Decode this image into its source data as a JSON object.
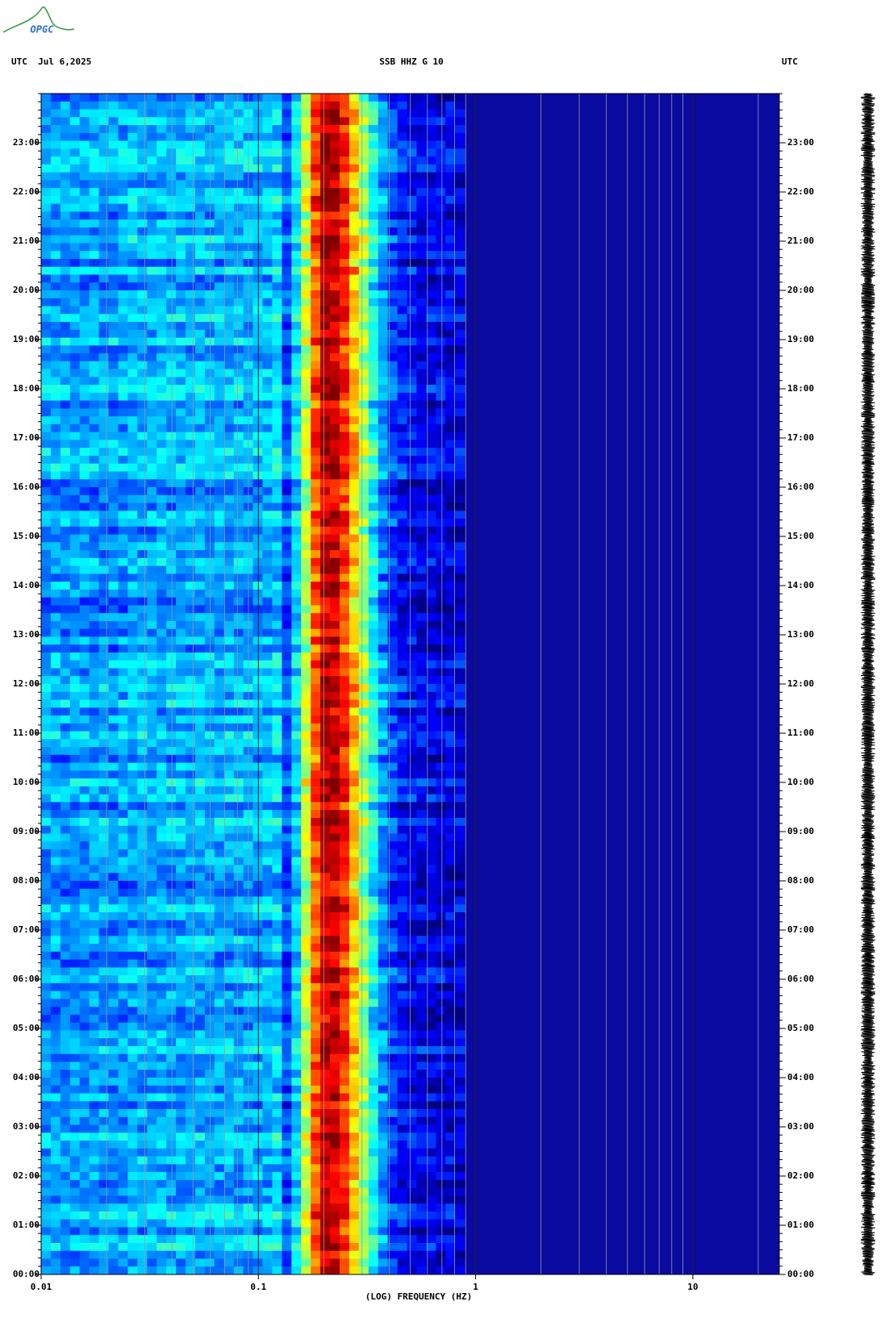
{
  "logo": "OPGC",
  "chart_data": {
    "type": "spectrogram",
    "header_left": "UTC  Jul 6,2025",
    "title": "SSB HHZ G 10",
    "header_right": "UTC",
    "xlabel": "(LOG) FREQUENCY (HZ)",
    "xscale": "log",
    "xlim": [
      0.01,
      25
    ],
    "xticks": [
      0.01,
      0.1,
      1,
      10
    ],
    "ylim": [
      0,
      24
    ],
    "yticks": [
      {
        "value": 0,
        "label": "00:00"
      },
      {
        "value": 1,
        "label": "01:00"
      },
      {
        "value": 2,
        "label": "02:00"
      },
      {
        "value": 3,
        "label": "03:00"
      },
      {
        "value": 4,
        "label": "04:00"
      },
      {
        "value": 5,
        "label": "05:00"
      },
      {
        "value": 6,
        "label": "06:00"
      },
      {
        "value": 7,
        "label": "07:00"
      },
      {
        "value": 8,
        "label": "08:00"
      },
      {
        "value": 9,
        "label": "09:00"
      },
      {
        "value": 10,
        "label": "10:00"
      },
      {
        "value": 11,
        "label": "11:00"
      },
      {
        "value": 12,
        "label": "12:00"
      },
      {
        "value": 13,
        "label": "13:00"
      },
      {
        "value": 14,
        "label": "14:00"
      },
      {
        "value": 15,
        "label": "15:00"
      },
      {
        "value": 16,
        "label": "16:00"
      },
      {
        "value": 17,
        "label": "17:00"
      },
      {
        "value": 18,
        "label": "18:00"
      },
      {
        "value": 19,
        "label": "19:00"
      },
      {
        "value": 20,
        "label": "20:00"
      },
      {
        "value": 21,
        "label": "21:00"
      },
      {
        "value": 22,
        "label": "22:00"
      },
      {
        "value": 23,
        "label": "23:00"
      }
    ],
    "grid": true
  }
}
